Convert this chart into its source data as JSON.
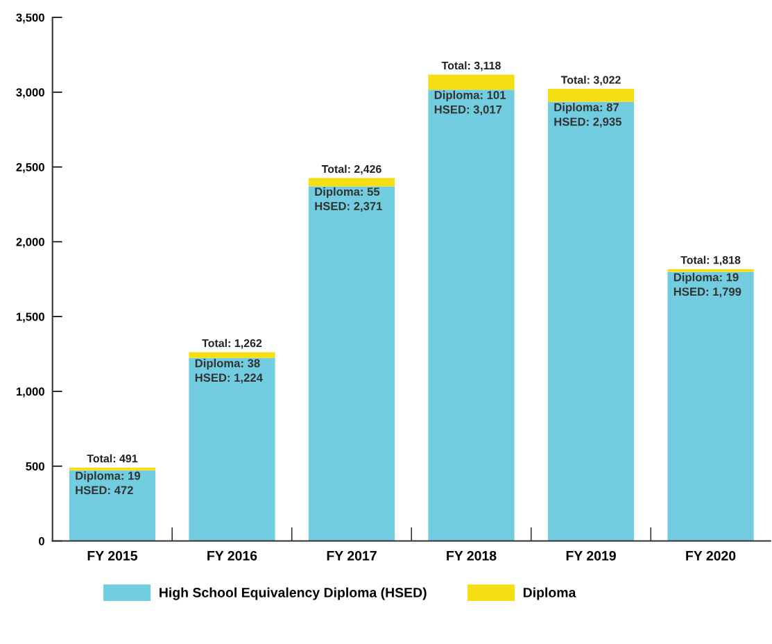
{
  "chart_data": {
    "type": "bar",
    "stacked": true,
    "categories": [
      "FY 2015",
      "FY 2016",
      "FY 2017",
      "FY 2018",
      "FY 2019",
      "FY 2020"
    ],
    "series": [
      {
        "name": "High School Equivalency Diploma (HSED)",
        "color": "#72cde0",
        "values": [
          472,
          1224,
          2371,
          3017,
          2935,
          1799
        ],
        "value_labels": [
          "HSED: 472",
          "HSED: 1,224",
          "HSED: 2,371",
          "HSED: 3,017",
          "HSED: 2,935",
          "HSED: 1,799"
        ]
      },
      {
        "name": "Diploma",
        "color": "#f5df14",
        "values": [
          19,
          38,
          55,
          101,
          87,
          19
        ],
        "value_labels": [
          "Diploma: 19",
          "Diploma: 38",
          "Diploma: 55",
          "Diploma: 101",
          "Diploma: 87",
          "Diploma: 19"
        ]
      }
    ],
    "totals": [
      "Total: 491",
      "Total: 1,262",
      "Total: 2,426",
      "Total: 3,118",
      "Total: 3,022",
      "Total: 1,818"
    ],
    "ylim": [
      0,
      3500
    ],
    "yticks": [
      0,
      {
        "value": 500,
        "label": "500"
      },
      {
        "value": 1000,
        "label": "1,000"
      },
      {
        "value": 1500,
        "label": "1,500"
      },
      {
        "value": 2000,
        "label": "2,000"
      },
      {
        "value": 2500,
        "label": "2,500"
      },
      {
        "value": 3000,
        "label": "3,000"
      },
      {
        "value": 3500,
        "label": "3,500"
      }
    ],
    "grid": false,
    "legend": "bottom"
  }
}
